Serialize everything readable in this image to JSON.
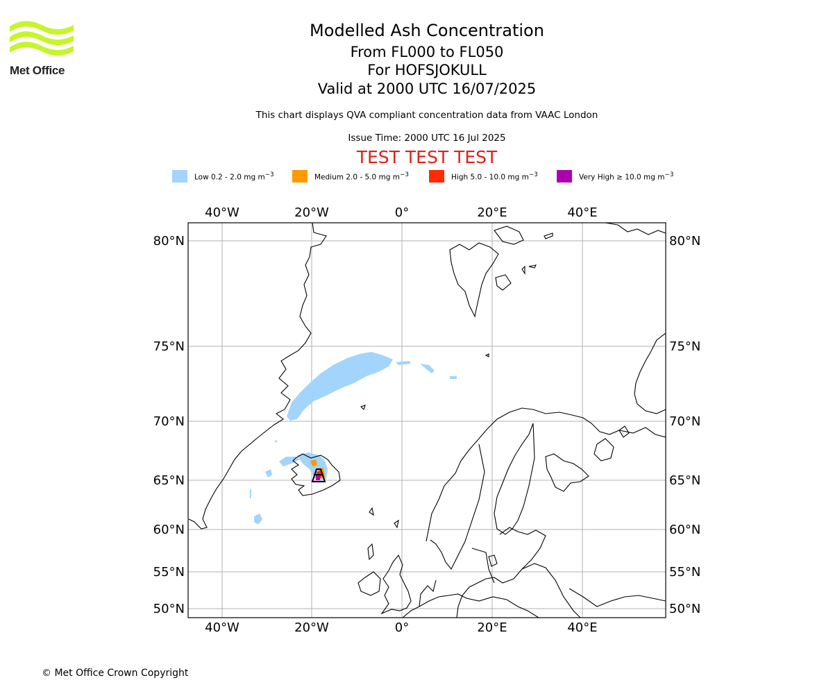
{
  "header": {
    "logo_text": "Met Office",
    "title": "Modelled Ash Concentration",
    "level_range": "From FL000 to FL050",
    "volcano": "For HOFSJOKULL",
    "valid_time": "Valid at 2000 UTC 16/07/2025",
    "description": "This chart displays QVA compliant concentration data from VAAC London",
    "issue_time": "Issue Time: 2000 UTC 16 Jul 2025",
    "test_banner": "TEST TEST TEST"
  },
  "legend": [
    {
      "label": "Low 0.2 - 2.0 mg m",
      "exp": "−3",
      "color": "#a3d4fc"
    },
    {
      "label": "Medium 2.0 - 5.0 mg m",
      "exp": "−3",
      "color": "#ff9900"
    },
    {
      "label": "High 5.0 - 10.0 mg m",
      "exp": "−3",
      "color": "#ff2a00"
    },
    {
      "label": "Very High  ≥  10.0 mg m",
      "exp": "−3",
      "color": "#ad00ad"
    }
  ],
  "map": {
    "lon_ticks": [
      "40°W",
      "20°W",
      "0°",
      "20°E",
      "40°E"
    ],
    "lat_ticks": [
      "80°N",
      "75°N",
      "70°N",
      "65°N",
      "60°N",
      "55°N",
      "50°N"
    ],
    "colors": {
      "low": "#a3d4fc",
      "medium": "#ff9900",
      "high": "#ff2a00",
      "very_high": "#ad00ad",
      "grid": "#b0b0b0",
      "coast": "#000000"
    },
    "icons": {
      "volcano": "volcano-icon"
    }
  },
  "footer": {
    "copyright": "© Met Office Crown Copyright"
  }
}
